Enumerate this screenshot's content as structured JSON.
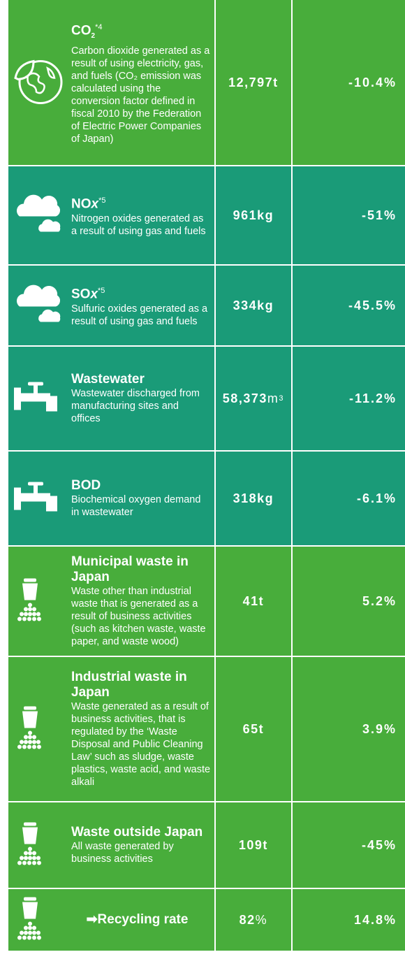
{
  "rows": [
    {
      "icon": "earth",
      "bg": "#48ad3b",
      "title": "CO",
      "title_sub": "2",
      "title_sup": "*4",
      "description": "Carbon dioxide generated as a result of using electricity, gas, and fuels (CO₂ emission was calculated using the conversion factor defined in fiscal 2010 by the Federation of Electric Power Companies of Japan)",
      "amount": "12,797t",
      "change": "-10.4%"
    },
    {
      "icon": "cloud",
      "bg": "#1a9b78",
      "title": "NO",
      "title_em": "x",
      "title_sup": "*5",
      "description": "Nitrogen oxides generated as a result of using gas and fuels",
      "amount": "961kg",
      "change": "-51%"
    },
    {
      "icon": "cloud",
      "bg": "#1a9b78",
      "title": "SO",
      "title_em": "x",
      "title_sup": "*5",
      "description": "Sulfuric oxides generated as a result of using gas and fuels",
      "amount": "334kg",
      "change": "-45.5%"
    },
    {
      "icon": "faucet",
      "bg": "#1a9b78",
      "title": "Wastewater",
      "description": "Wastewater discharged from manufacturing sites and offices",
      "amount": "58,373",
      "amount_unit": "m",
      "amount_sup": "3",
      "change": "-11.2%"
    },
    {
      "icon": "faucet",
      "bg": "#1a9b78",
      "title": "BOD",
      "description": "Biochemical oxygen demand in wastewater",
      "amount": "318kg",
      "change": "-6.1%"
    },
    {
      "icon": "waste",
      "bg": "#48ad3b",
      "title": "Municipal waste in Japan",
      "description": "Waste other than industrial waste that is generated as a result of business activities (such as kitchen waste, waste paper, and waste wood)",
      "amount": "41t",
      "change": "5.2%"
    },
    {
      "icon": "waste",
      "bg": "#48ad3b",
      "title": "Industrial waste in Japan",
      "description": "Waste generated as a result of business activities, that is regulated by the ‘Waste Disposal and Public Cleaning Law’ such as sludge, waste plastics, waste acid, and waste alkali",
      "amount": "65t",
      "change": "3.9%"
    },
    {
      "icon": "waste",
      "bg": "#48ad3b",
      "title": "Waste outside Japan",
      "description": "All waste generated by business activities",
      "amount": "109t",
      "change": "-45%"
    },
    {
      "icon": "waste",
      "bg": "#48ad3b",
      "title": "➡Recycling rate",
      "amount": "82",
      "amount_unit": "%",
      "change": "14.8%"
    }
  ]
}
